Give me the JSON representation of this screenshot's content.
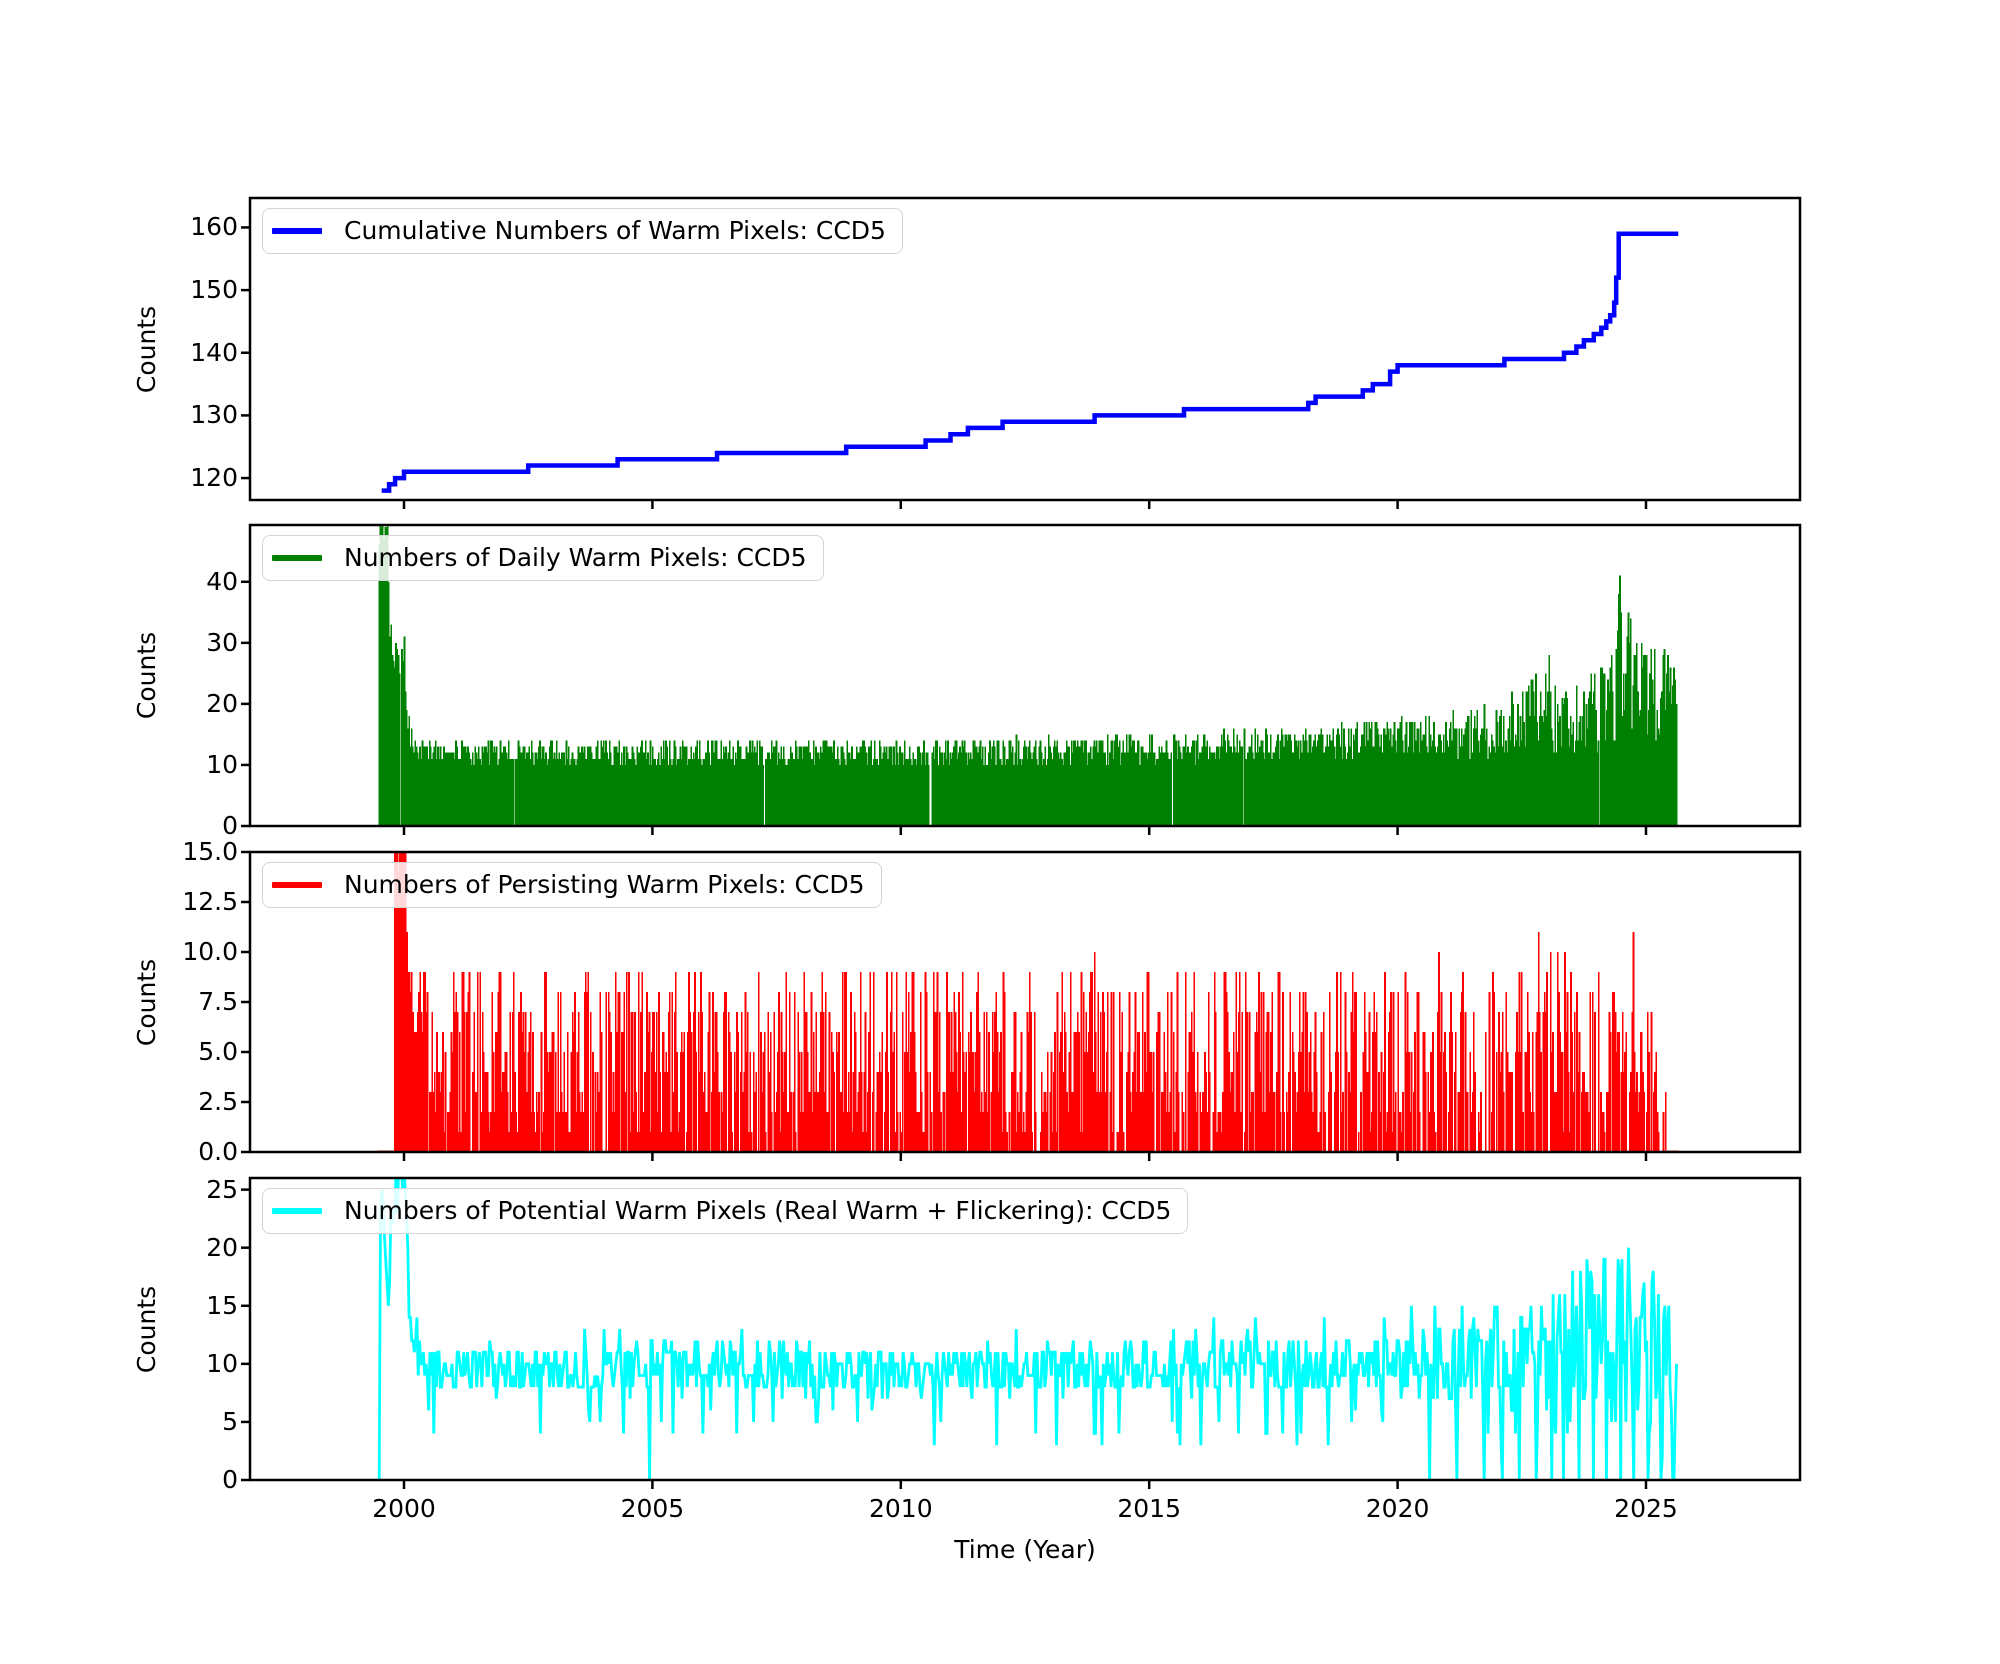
{
  "xaxis": {
    "label": "Time (Year)",
    "tick_years": [
      2000,
      2005,
      2010,
      2015,
      2020,
      2025
    ],
    "tick_labels": [
      "2000",
      "2005",
      "2010",
      "2015",
      "2020",
      "2025"
    ],
    "range": [
      1996.9,
      2028.1
    ]
  },
  "chart_data": [
    {
      "panel": "cumulative-warm-pixels",
      "type": "line",
      "subtype": "step",
      "title": "Cumulative Numbers of Warm Pixels: CCD5",
      "ylabel": "Counts",
      "color": "#0000ff",
      "ylim": [
        116.5,
        164.7
      ],
      "ytick_vals": [
        120,
        130,
        140,
        150,
        160
      ],
      "ytick_labels": [
        "120",
        "130",
        "140",
        "150",
        "160"
      ],
      "x_range": [
        1999.55,
        2025.65
      ],
      "steps": [
        [
          1999.55,
          118
        ],
        [
          1999.7,
          119
        ],
        [
          1999.82,
          120
        ],
        [
          2000.0,
          121
        ],
        [
          2002.5,
          122
        ],
        [
          2004.3,
          123
        ],
        [
          2006.3,
          124
        ],
        [
          2008.9,
          125
        ],
        [
          2010.5,
          126
        ],
        [
          2011.0,
          127
        ],
        [
          2011.35,
          128
        ],
        [
          2012.05,
          129
        ],
        [
          2013.9,
          130
        ],
        [
          2015.7,
          131
        ],
        [
          2018.2,
          132
        ],
        [
          2018.35,
          133
        ],
        [
          2019.3,
          134
        ],
        [
          2019.5,
          135
        ],
        [
          2019.85,
          137
        ],
        [
          2020.0,
          138
        ],
        [
          2022.15,
          139
        ],
        [
          2023.35,
          140
        ],
        [
          2023.6,
          141
        ],
        [
          2023.75,
          142
        ],
        [
          2023.95,
          143
        ],
        [
          2024.1,
          144
        ],
        [
          2024.2,
          145
        ],
        [
          2024.28,
          146
        ],
        [
          2024.36,
          148
        ],
        [
          2024.4,
          152
        ],
        [
          2024.45,
          159
        ],
        [
          2025.65,
          159
        ]
      ]
    },
    {
      "panel": "daily-warm-pixels",
      "type": "area",
      "subtype": "noisy-columns",
      "title": "Numbers of Daily Warm Pixels: CCD5",
      "ylabel": "Counts",
      "color": "#008000",
      "ylim": [
        0,
        49.3
      ],
      "ytick_vals": [
        0,
        10,
        20,
        30,
        40
      ],
      "ytick_labels": [
        "0",
        "10",
        "20",
        "30",
        "40"
      ],
      "x_range": [
        1999.5,
        2025.62
      ],
      "seed": 101,
      "round_values": true,
      "clamp_max": 52,
      "baseline": [
        [
          1999.5,
          50,
          6
        ],
        [
          1999.68,
          50,
          6
        ],
        [
          1999.72,
          33,
          3
        ],
        [
          1999.8,
          29,
          3
        ],
        [
          1999.9,
          27,
          3
        ],
        [
          2000.0,
          29,
          3
        ],
        [
          2000.06,
          20,
          4
        ],
        [
          2000.12,
          14,
          2
        ],
        [
          2000.3,
          12.5,
          2.2
        ],
        [
          2002.0,
          12,
          2.2
        ],
        [
          2006.0,
          12.3,
          2.2
        ],
        [
          2010.0,
          12,
          2.2
        ],
        [
          2013.0,
          12.3,
          2.4
        ],
        [
          2016.0,
          13,
          2.6
        ],
        [
          2018.0,
          13.5,
          2.8
        ],
        [
          2019.5,
          14.5,
          3
        ],
        [
          2021.0,
          15,
          3.6
        ],
        [
          2022.0,
          16,
          5
        ],
        [
          2022.8,
          19,
          7
        ],
        [
          2023.3,
          17,
          6
        ],
        [
          2023.8,
          18,
          7
        ],
        [
          2024.3,
          20,
          8
        ],
        [
          2024.55,
          27,
          12
        ],
        [
          2024.8,
          22,
          9
        ],
        [
          2025.2,
          21,
          8
        ],
        [
          2025.45,
          23,
          7
        ],
        [
          2025.62,
          19,
          6
        ]
      ],
      "peaks": [
        [
          2022.7,
          27
        ],
        [
          2023.05,
          28
        ],
        [
          2024.3,
          30
        ],
        [
          2024.47,
          43
        ],
        [
          2024.62,
          31
        ],
        [
          2024.8,
          30
        ],
        [
          2025.1,
          30
        ],
        [
          2025.35,
          29
        ]
      ],
      "zero_dips": [
        2010.6
      ],
      "zero_prob": [
        [
          1999.5,
          0.0
        ],
        [
          2000.3,
          0.005
        ],
        [
          2025.62,
          0.005
        ]
      ]
    },
    {
      "panel": "persisting-warm-pixels",
      "type": "area",
      "subtype": "noisy-columns",
      "title": "Numbers of Persisting Warm Pixels: CCD5",
      "ylabel": "Counts",
      "color": "#ff0000",
      "ylim": [
        0,
        15
      ],
      "ytick_vals": [
        0,
        2.5,
        5,
        7.5,
        10,
        12.5,
        15
      ],
      "ytick_labels": [
        "0.0",
        "2.5",
        "5.0",
        "7.5",
        "10.0",
        "12.5",
        "15.0"
      ],
      "x_range": [
        1999.48,
        2025.65
      ],
      "seed": 202,
      "round_values": true,
      "clamp_max": 15,
      "baseline": [
        [
          1999.48,
          0.05,
          0.05
        ],
        [
          1999.8,
          0.05,
          0.05
        ],
        [
          1999.82,
          16,
          2
        ],
        [
          2000.02,
          16,
          2
        ],
        [
          2000.08,
          9.5,
          0.5
        ],
        [
          2000.15,
          6.5,
          3
        ],
        [
          2000.5,
          5.5,
          4
        ],
        [
          2001.0,
          5,
          4.3
        ],
        [
          2010.0,
          5,
          4.3
        ],
        [
          2016.0,
          5.2,
          4.3
        ],
        [
          2020.0,
          5.3,
          4.4
        ],
        [
          2023.0,
          5.5,
          4.5
        ],
        [
          2024.8,
          5.3,
          4.4
        ],
        [
          2025.3,
          4,
          3.5
        ],
        [
          2025.45,
          0.15,
          0.15
        ],
        [
          2025.65,
          0.08,
          0.08
        ]
      ],
      "peaks": [
        [
          2004.78,
          10
        ],
        [
          2004.9,
          10
        ],
        [
          2010.7,
          10
        ],
        [
          2013.9,
          10
        ],
        [
          2015.9,
          10
        ],
        [
          2021.3,
          10
        ],
        [
          2022.84,
          12
        ],
        [
          2024.74,
          12
        ]
      ],
      "zero_dips": [],
      "zero_prob": [
        [
          1999.4,
          0
        ],
        [
          2000.05,
          0
        ],
        [
          2000.2,
          0.06
        ],
        [
          2012.0,
          0.09
        ],
        [
          2016.0,
          0.13
        ],
        [
          2019.0,
          0.16
        ],
        [
          2022.0,
          0.2
        ],
        [
          2025.4,
          0.24
        ]
      ]
    },
    {
      "panel": "potential-warm-pixels",
      "type": "line",
      "subtype": "noisy-line",
      "title": "Numbers of Potential Warm Pixels (Real Warm + Flickering): CCD5",
      "ylabel": "Counts",
      "color": "#00ffff",
      "ylim": [
        0,
        26
      ],
      "ytick_vals": [
        0,
        5,
        10,
        15,
        20,
        25
      ],
      "ytick_labels": [
        "0",
        "5",
        "10",
        "15",
        "20",
        "25"
      ],
      "x_range": [
        1999.5,
        2025.62
      ],
      "seed": 303,
      "round_values": true,
      "clamp_max": 27,
      "baseline": [
        [
          1999.5,
          0,
          0
        ],
        [
          1999.53,
          27,
          3
        ],
        [
          1999.6,
          24,
          3
        ],
        [
          1999.65,
          14,
          8
        ],
        [
          1999.72,
          22,
          3
        ],
        [
          1999.8,
          24,
          4
        ],
        [
          1999.9,
          27,
          3
        ],
        [
          2000.04,
          27,
          3
        ],
        [
          2000.1,
          13,
          1.5
        ],
        [
          2000.25,
          10.5,
          1.5
        ],
        [
          2000.7,
          9.5,
          2
        ],
        [
          2003.0,
          9.5,
          2
        ],
        [
          2006.0,
          9.7,
          2.2
        ],
        [
          2010.0,
          9.4,
          2.1
        ],
        [
          2014.0,
          9.5,
          2.2
        ],
        [
          2017.0,
          9.8,
          2.3
        ],
        [
          2019.0,
          10,
          2.5
        ],
        [
          2020.5,
          10,
          3
        ],
        [
          2021.5,
          10,
          4
        ],
        [
          2022.3,
          10.5,
          5
        ],
        [
          2023.0,
          10.5,
          6.5
        ],
        [
          2023.8,
          11,
          7.5
        ],
        [
          2024.5,
          12,
          8
        ],
        [
          2025.0,
          10.5,
          7
        ],
        [
          2025.4,
          11,
          6
        ],
        [
          2025.62,
          9,
          5
        ]
      ],
      "peaks": [
        [
          2005.85,
          14
        ],
        [
          2006.3,
          13
        ],
        [
          2013.35,
          13
        ],
        [
          2017.8,
          13
        ],
        [
          2020.3,
          13
        ],
        [
          2021.3,
          15.5
        ],
        [
          2022.0,
          16
        ],
        [
          2022.9,
          17
        ],
        [
          2023.35,
          20
        ],
        [
          2023.9,
          21
        ],
        [
          2024.15,
          19
        ],
        [
          2024.45,
          22
        ],
        [
          2024.65,
          21
        ],
        [
          2024.95,
          20
        ],
        [
          2025.15,
          19
        ],
        [
          2025.45,
          17
        ]
      ],
      "zero_dips": [
        2004.95,
        2020.65,
        2021.2,
        2021.75,
        2022.1,
        2022.45,
        2022.8,
        2023.1,
        2023.35,
        2023.65,
        2023.95,
        2024.2,
        2024.5,
        2024.75,
        2025.05,
        2025.3,
        2025.55
      ],
      "low_dips": [
        [
          2000.6,
          4
        ],
        [
          2004.42,
          3.5
        ],
        [
          2008.3,
          5
        ],
        [
          2010.8,
          5
        ],
        [
          2013.9,
          4
        ],
        [
          2016.4,
          5
        ],
        [
          2018.6,
          5
        ],
        [
          2019.7,
          4.5
        ]
      ]
    }
  ]
}
